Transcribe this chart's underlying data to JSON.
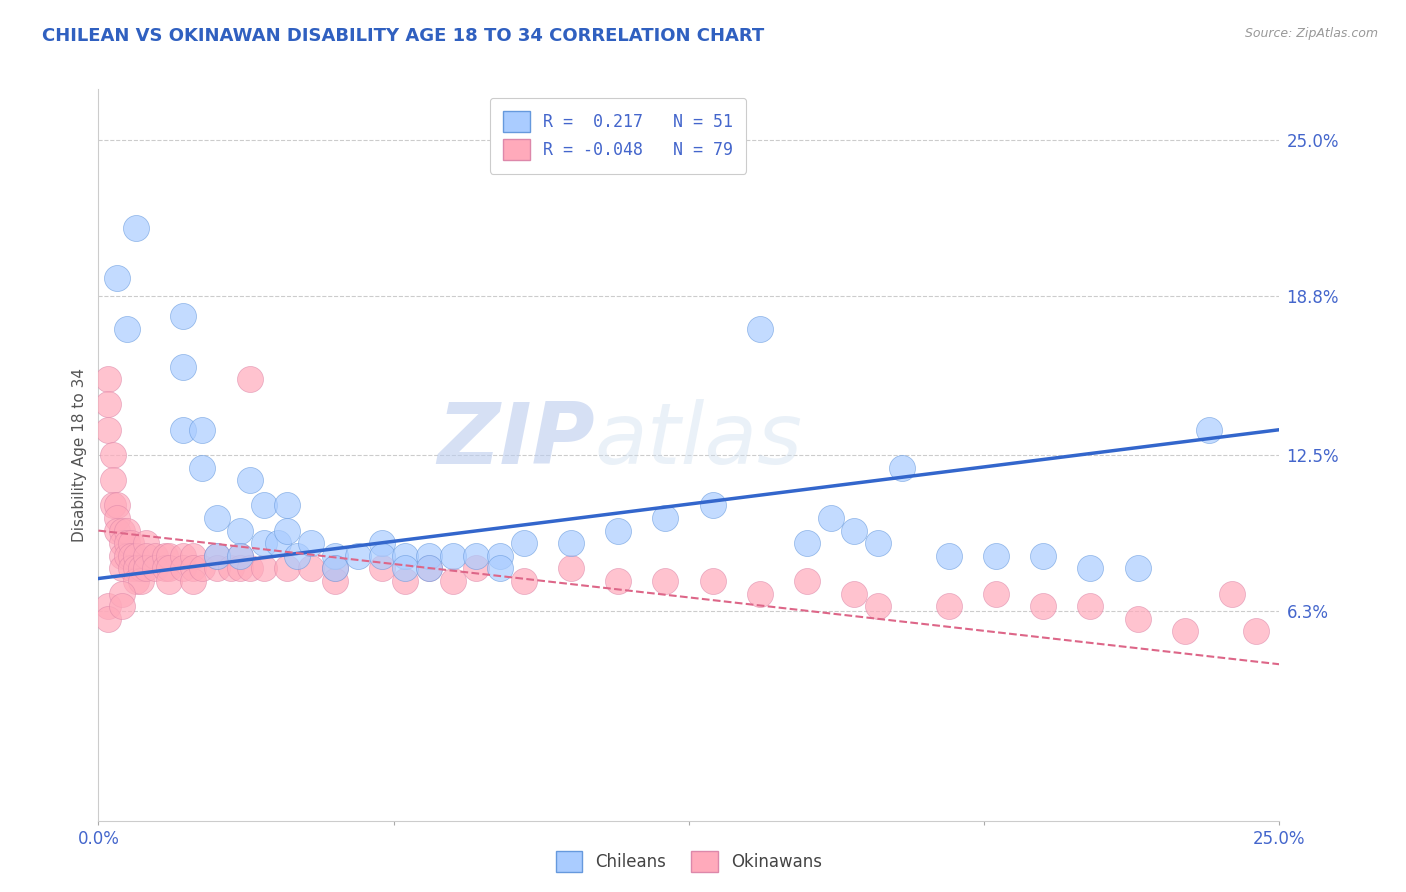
{
  "title": "CHILEAN VS OKINAWAN DISABILITY AGE 18 TO 34 CORRELATION CHART",
  "title_color": "#3060c0",
  "source_text": "Source: ZipAtlas.com",
  "ylabel": "Disability Age 18 to 34",
  "xlim": [
    0.0,
    0.25
  ],
  "ylim": [
    -0.02,
    0.27
  ],
  "ytick_labels": [
    "25.0%",
    "18.8%",
    "12.5%",
    "6.3%"
  ],
  "ytick_values": [
    0.25,
    0.188,
    0.125,
    0.063
  ],
  "ytick_labels_right": [
    "25.0%",
    "18.8%",
    "12.5%",
    "6.3%"
  ],
  "xtick_labels": [
    "0.0%",
    "",
    "",
    "",
    "25.0%"
  ],
  "xtick_values": [
    0.0,
    0.0625,
    0.125,
    0.1875,
    0.25
  ],
  "background_color": "#ffffff",
  "grid_color": "#cccccc",
  "watermark_ZIP": "ZIP",
  "watermark_atlas": "atlas",
  "legend_R_chilean": "0.217",
  "legend_N_chilean": "51",
  "legend_R_okinawan": "-0.048",
  "legend_N_okinawan": "79",
  "chilean_color": "#aaccff",
  "okinawan_color": "#ffaabb",
  "chilean_edge_color": "#6699dd",
  "okinawan_edge_color": "#dd88aa",
  "chilean_line_color": "#3366cc",
  "okinawan_line_color": "#dd6688",
  "text_color": "#4466cc",
  "chilean_scatter": [
    [
      0.004,
      0.195
    ],
    [
      0.006,
      0.175
    ],
    [
      0.008,
      0.215
    ],
    [
      0.018,
      0.18
    ],
    [
      0.018,
      0.16
    ],
    [
      0.018,
      0.135
    ],
    [
      0.022,
      0.135
    ],
    [
      0.022,
      0.12
    ],
    [
      0.025,
      0.1
    ],
    [
      0.025,
      0.085
    ],
    [
      0.03,
      0.095
    ],
    [
      0.03,
      0.085
    ],
    [
      0.032,
      0.115
    ],
    [
      0.035,
      0.105
    ],
    [
      0.035,
      0.09
    ],
    [
      0.038,
      0.09
    ],
    [
      0.04,
      0.105
    ],
    [
      0.04,
      0.095
    ],
    [
      0.042,
      0.085
    ],
    [
      0.045,
      0.09
    ],
    [
      0.05,
      0.085
    ],
    [
      0.05,
      0.08
    ],
    [
      0.055,
      0.085
    ],
    [
      0.06,
      0.09
    ],
    [
      0.06,
      0.085
    ],
    [
      0.065,
      0.085
    ],
    [
      0.065,
      0.08
    ],
    [
      0.07,
      0.085
    ],
    [
      0.07,
      0.08
    ],
    [
      0.075,
      0.085
    ],
    [
      0.08,
      0.085
    ],
    [
      0.085,
      0.085
    ],
    [
      0.085,
      0.08
    ],
    [
      0.09,
      0.09
    ],
    [
      0.1,
      0.09
    ],
    [
      0.11,
      0.095
    ],
    [
      0.12,
      0.1
    ],
    [
      0.13,
      0.105
    ],
    [
      0.14,
      0.175
    ],
    [
      0.15,
      0.09
    ],
    [
      0.155,
      0.1
    ],
    [
      0.16,
      0.095
    ],
    [
      0.165,
      0.09
    ],
    [
      0.17,
      0.12
    ],
    [
      0.18,
      0.085
    ],
    [
      0.19,
      0.085
    ],
    [
      0.2,
      0.085
    ],
    [
      0.21,
      0.08
    ],
    [
      0.22,
      0.08
    ],
    [
      0.235,
      0.135
    ]
  ],
  "okinawan_scatter": [
    [
      0.002,
      0.155
    ],
    [
      0.002,
      0.145
    ],
    [
      0.002,
      0.135
    ],
    [
      0.003,
      0.125
    ],
    [
      0.003,
      0.115
    ],
    [
      0.003,
      0.105
    ],
    [
      0.004,
      0.105
    ],
    [
      0.004,
      0.1
    ],
    [
      0.004,
      0.095
    ],
    [
      0.005,
      0.095
    ],
    [
      0.005,
      0.09
    ],
    [
      0.005,
      0.085
    ],
    [
      0.005,
      0.08
    ],
    [
      0.006,
      0.095
    ],
    [
      0.006,
      0.09
    ],
    [
      0.006,
      0.085
    ],
    [
      0.007,
      0.09
    ],
    [
      0.007,
      0.085
    ],
    [
      0.007,
      0.08
    ],
    [
      0.008,
      0.085
    ],
    [
      0.008,
      0.08
    ],
    [
      0.008,
      0.075
    ],
    [
      0.009,
      0.08
    ],
    [
      0.009,
      0.075
    ],
    [
      0.01,
      0.09
    ],
    [
      0.01,
      0.085
    ],
    [
      0.01,
      0.08
    ],
    [
      0.012,
      0.085
    ],
    [
      0.012,
      0.08
    ],
    [
      0.014,
      0.085
    ],
    [
      0.014,
      0.08
    ],
    [
      0.015,
      0.085
    ],
    [
      0.015,
      0.08
    ],
    [
      0.015,
      0.075
    ],
    [
      0.018,
      0.085
    ],
    [
      0.018,
      0.08
    ],
    [
      0.02,
      0.085
    ],
    [
      0.02,
      0.08
    ],
    [
      0.02,
      0.075
    ],
    [
      0.022,
      0.08
    ],
    [
      0.025,
      0.085
    ],
    [
      0.025,
      0.08
    ],
    [
      0.028,
      0.08
    ],
    [
      0.03,
      0.085
    ],
    [
      0.03,
      0.08
    ],
    [
      0.032,
      0.155
    ],
    [
      0.032,
      0.08
    ],
    [
      0.035,
      0.08
    ],
    [
      0.04,
      0.08
    ],
    [
      0.045,
      0.08
    ],
    [
      0.05,
      0.08
    ],
    [
      0.05,
      0.075
    ],
    [
      0.06,
      0.08
    ],
    [
      0.065,
      0.075
    ],
    [
      0.07,
      0.08
    ],
    [
      0.075,
      0.075
    ],
    [
      0.08,
      0.08
    ],
    [
      0.09,
      0.075
    ],
    [
      0.1,
      0.08
    ],
    [
      0.11,
      0.075
    ],
    [
      0.12,
      0.075
    ],
    [
      0.13,
      0.075
    ],
    [
      0.14,
      0.07
    ],
    [
      0.15,
      0.075
    ],
    [
      0.16,
      0.07
    ],
    [
      0.165,
      0.065
    ],
    [
      0.18,
      0.065
    ],
    [
      0.19,
      0.07
    ],
    [
      0.2,
      0.065
    ],
    [
      0.21,
      0.065
    ],
    [
      0.22,
      0.06
    ],
    [
      0.23,
      0.055
    ],
    [
      0.24,
      0.07
    ],
    [
      0.245,
      0.055
    ],
    [
      0.002,
      0.065
    ],
    [
      0.002,
      0.06
    ],
    [
      0.005,
      0.07
    ],
    [
      0.005,
      0.065
    ]
  ],
  "chilean_trendline": [
    [
      0.0,
      0.076
    ],
    [
      0.25,
      0.135
    ]
  ],
  "okinawan_trendline": [
    [
      0.0,
      0.095
    ],
    [
      0.25,
      0.042
    ]
  ]
}
